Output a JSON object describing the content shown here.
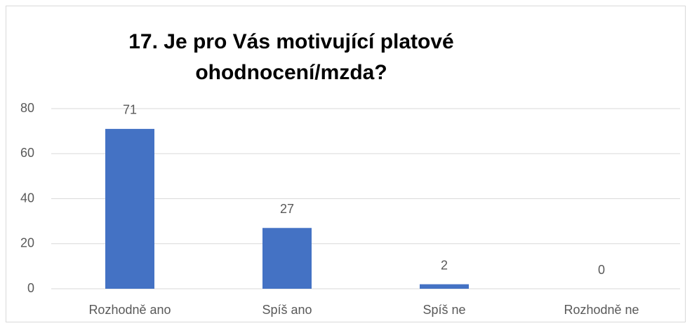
{
  "chart_data": {
    "type": "bar",
    "title": "17. Je pro Vás motivující platové ohodnocení/mzda?",
    "categories": [
      "Rozhodně ano",
      "Spíš ano",
      "Spíš ne",
      "Rozhodně ne"
    ],
    "values": [
      71,
      27,
      2,
      0
    ],
    "color": "#4472c4",
    "ylim": [
      0,
      80
    ],
    "yticks": [
      0,
      20,
      40,
      60,
      80
    ],
    "grid": true
  }
}
